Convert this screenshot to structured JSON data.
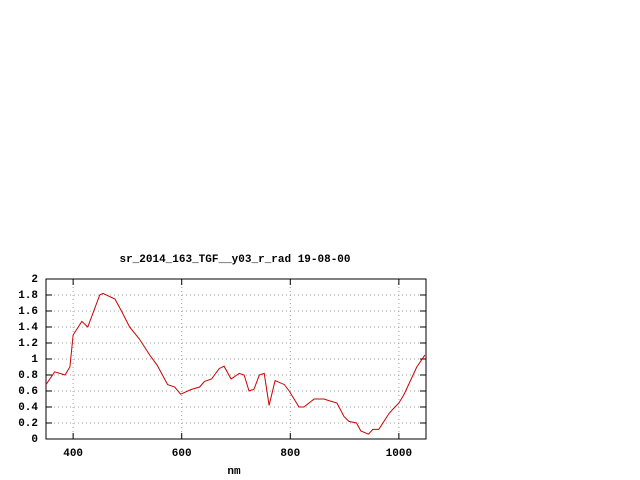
{
  "chart_data": {
    "type": "line",
    "title": "sr_2014_163_TGF__y03_r_rad 19-08-00",
    "x_label": "nm",
    "xlim": [
      350,
      1050
    ],
    "ylim": [
      0,
      2
    ],
    "xticks": [
      400,
      600,
      800,
      1000
    ],
    "yticks": [
      0,
      0.2,
      0.4,
      0.6,
      0.8,
      1,
      1.2,
      1.4,
      1.6,
      1.8,
      2
    ],
    "grid": true,
    "x": [
      350,
      366,
      385,
      394,
      400,
      416,
      427,
      449,
      455,
      477,
      489,
      504,
      522,
      541,
      555,
      574,
      587,
      598,
      618,
      633,
      642,
      655,
      669,
      678,
      691,
      706,
      715,
      724,
      733,
      743,
      752,
      761,
      772,
      789,
      798,
      816,
      825,
      844,
      862,
      871,
      886,
      899,
      908,
      922,
      930,
      944,
      952,
      963,
      982,
      990,
      1000,
      1009,
      1018,
      1033,
      1048
    ],
    "series": [
      {
        "name": "sr_2014_163_TGF__y03_r_rad",
        "color": "#cc0000",
        "values": [
          0.68,
          0.84,
          0.8,
          0.9,
          1.3,
          1.47,
          1.4,
          1.8,
          1.82,
          1.75,
          1.6,
          1.4,
          1.25,
          1.05,
          0.92,
          0.68,
          0.65,
          0.56,
          0.62,
          0.65,
          0.72,
          0.75,
          0.88,
          0.91,
          0.75,
          0.82,
          0.8,
          0.6,
          0.62,
          0.8,
          0.82,
          0.42,
          0.73,
          0.68,
          0.6,
          0.4,
          0.4,
          0.5,
          0.5,
          0.48,
          0.45,
          0.28,
          0.22,
          0.2,
          0.1,
          0.06,
          0.12,
          0.12,
          0.32,
          0.38,
          0.45,
          0.55,
          0.68,
          0.9,
          1.05
        ]
      }
    ]
  }
}
